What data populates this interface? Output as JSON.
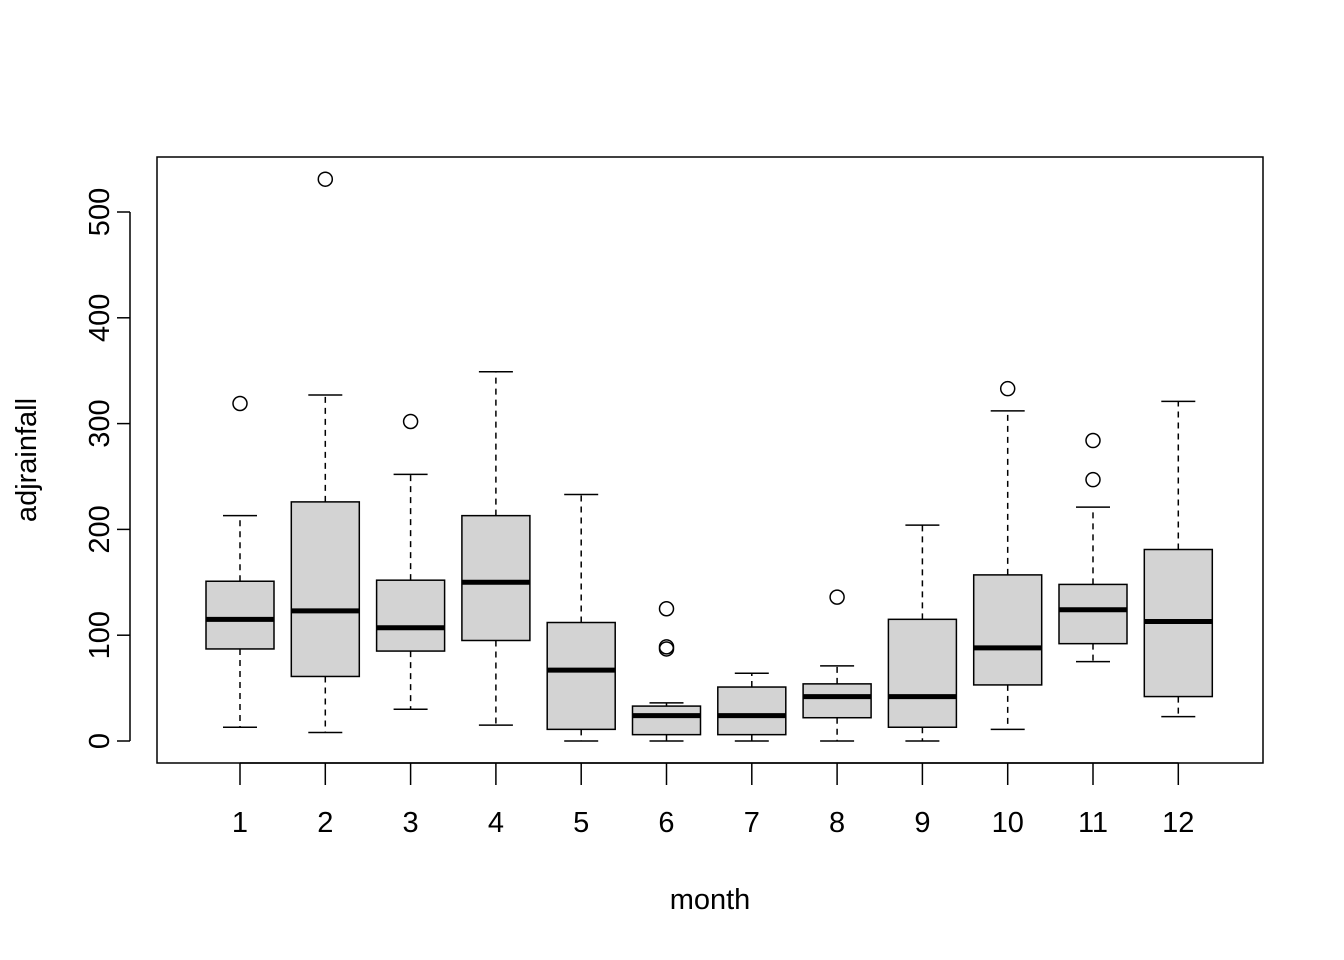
{
  "chart_data": {
    "type": "boxplot",
    "title": "",
    "xlabel": "month",
    "ylabel": "adjrainfall",
    "ylim": [
      -20,
      550
    ],
    "yticks": [
      0,
      100,
      200,
      300,
      400,
      500
    ],
    "categories": [
      "1",
      "2",
      "3",
      "4",
      "5",
      "6",
      "7",
      "8",
      "9",
      "10",
      "11",
      "12"
    ],
    "box_fill": "#d3d3d3",
    "boxes": [
      {
        "min": 13,
        "q1": 87,
        "median": 115,
        "q3": 151,
        "max": 213,
        "outliers": [
          319
        ]
      },
      {
        "min": 8,
        "q1": 61,
        "median": 123,
        "q3": 226,
        "max": 327,
        "outliers": [
          531
        ]
      },
      {
        "min": 30,
        "q1": 85,
        "median": 107,
        "q3": 152,
        "max": 252,
        "outliers": [
          302
        ]
      },
      {
        "min": 15,
        "q1": 95,
        "median": 150,
        "q3": 213,
        "max": 349,
        "outliers": []
      },
      {
        "min": 0,
        "q1": 11,
        "median": 67,
        "q3": 112,
        "max": 233,
        "outliers": []
      },
      {
        "min": 0,
        "q1": 6,
        "median": 24,
        "q3": 33,
        "max": 36,
        "outliers": [
          125,
          89,
          87
        ]
      },
      {
        "min": 0,
        "q1": 6,
        "median": 24,
        "q3": 51,
        "max": 64,
        "outliers": []
      },
      {
        "min": 0,
        "q1": 22,
        "median": 42,
        "q3": 54,
        "max": 71,
        "outliers": [
          136
        ]
      },
      {
        "min": 0,
        "q1": 13,
        "median": 42,
        "q3": 115,
        "max": 204,
        "outliers": []
      },
      {
        "min": 11,
        "q1": 53,
        "median": 88,
        "q3": 157,
        "max": 312,
        "outliers": [
          333
        ]
      },
      {
        "min": 75,
        "q1": 92,
        "median": 124,
        "q3": 148,
        "max": 221,
        "outliers": [
          284,
          247
        ]
      },
      {
        "min": 23,
        "q1": 42,
        "median": 113,
        "q3": 181,
        "max": 321,
        "outliers": []
      }
    ]
  }
}
